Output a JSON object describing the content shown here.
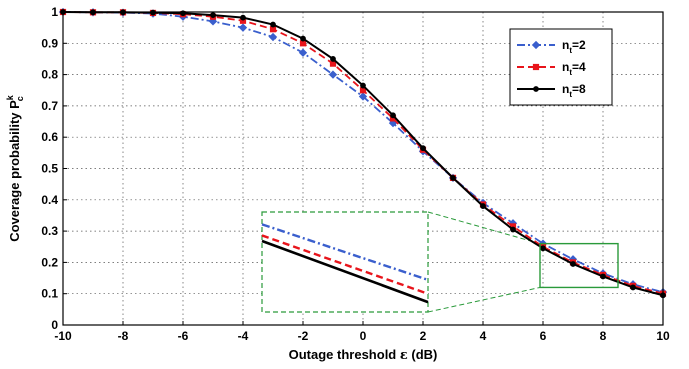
{
  "chart_data": {
    "type": "line",
    "xlabel_main": "Outage threshold ",
    "xlabel_symbol": "ε",
    "xlabel_unit": " (dB)",
    "ylabel_main": "Coverage probability P",
    "ylabel_sub": "c",
    "ylabel_sup": "k",
    "xlim": [
      -10,
      10
    ],
    "ylim": [
      0,
      1
    ],
    "xticks": [
      "-10",
      "-8",
      "-6",
      "-4",
      "-2",
      "0",
      "2",
      "4",
      "6",
      "8",
      "10"
    ],
    "yticks": [
      "0",
      "0.1",
      "0.2",
      "0.3",
      "0.4",
      "0.5",
      "0.6",
      "0.7",
      "0.8",
      "0.9",
      "1"
    ],
    "grid": true,
    "legend_position": "top-right",
    "x": [
      -10,
      -9,
      -8,
      -7,
      -6,
      -5,
      -4,
      -3,
      -2,
      -1,
      0,
      1,
      2,
      3,
      4,
      5,
      6,
      7,
      8,
      9,
      10
    ],
    "series": [
      {
        "name_base": "n",
        "name_sub": "t",
        "name_value": "=2",
        "color": "#3a5fcd",
        "dash": "dashdot",
        "marker": "diamond",
        "values": [
          1.0,
          0.999,
          0.998,
          0.995,
          0.985,
          0.97,
          0.95,
          0.92,
          0.87,
          0.8,
          0.73,
          0.645,
          0.555,
          0.47,
          0.39,
          0.325,
          0.26,
          0.21,
          0.165,
          0.13,
          0.105
        ]
      },
      {
        "name_base": "n",
        "name_sub": "t",
        "name_value": "=4",
        "color": "#e8141b",
        "dash": "dashed",
        "marker": "square",
        "values": [
          1.0,
          0.999,
          0.999,
          0.997,
          0.993,
          0.985,
          0.972,
          0.945,
          0.9,
          0.835,
          0.75,
          0.66,
          0.56,
          0.47,
          0.385,
          0.315,
          0.25,
          0.2,
          0.16,
          0.125,
          0.1
        ]
      },
      {
        "name_base": "n",
        "name_sub": "t",
        "name_value": "=8",
        "color": "#000000",
        "dash": "solid",
        "marker": "circle",
        "values": [
          1.0,
          0.999,
          0.999,
          0.998,
          0.996,
          0.99,
          0.982,
          0.96,
          0.915,
          0.85,
          0.765,
          0.67,
          0.565,
          0.47,
          0.38,
          0.305,
          0.245,
          0.195,
          0.155,
          0.12,
          0.095
        ]
      }
    ],
    "zoom_region": {
      "x": [
        5.9,
        8.5
      ],
      "y": [
        0.12,
        0.26
      ]
    },
    "inset": {
      "start": [
        0.33,
        0.29,
        0.27
      ],
      "end": [
        0.13,
        0.08,
        0.05
      ]
    },
    "colors": {
      "zoom_box": "#2a9a3a",
      "inset_box": "#2a9a3a",
      "grid": "#555555"
    }
  }
}
